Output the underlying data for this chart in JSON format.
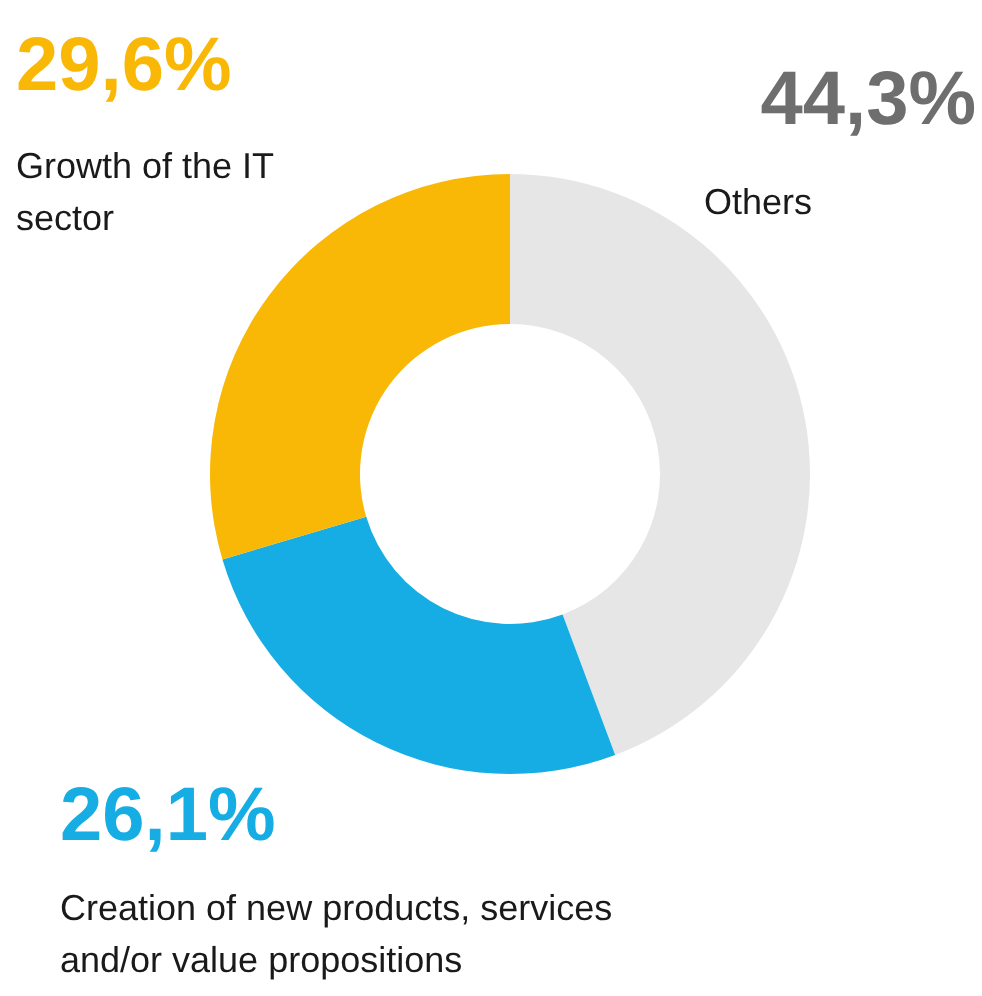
{
  "chart_data": {
    "type": "donut",
    "categories": [
      "Others",
      "Creation of new products, services and/or value propositions",
      "Growth of the IT sector"
    ],
    "values": [
      44.3,
      26.1,
      29.6
    ],
    "value_labels": [
      "44,3%",
      "26,1%",
      "29,6%"
    ],
    "colors": [
      "#e6e6e6",
      "#15ade3",
      "#f8b805"
    ]
  }
}
